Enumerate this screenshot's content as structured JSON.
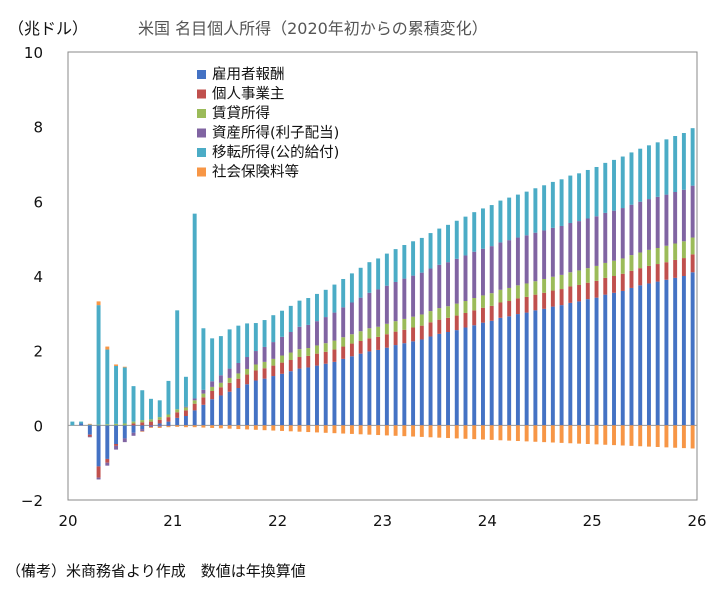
{
  "chart_data": {
    "type": "bar",
    "stacked": true,
    "title": "米国 名目個人所得（2020年初からの累積変化）",
    "unit_label": "（兆ドル）",
    "note": "（備考）米商務省より作成　数値は年換算値",
    "ylim": [
      -2,
      10
    ],
    "yticks": [
      "−2",
      "0",
      "2",
      "4",
      "6",
      "8",
      "10"
    ],
    "ytick_values": [
      -2,
      0,
      2,
      4,
      6,
      8,
      10
    ],
    "xlim": [
      20,
      26
    ],
    "xticks": [
      "20",
      "21",
      "22",
      "23",
      "24",
      "25",
      "26"
    ],
    "xtick_values": [
      20,
      21,
      22,
      23,
      24,
      25,
      26
    ],
    "grid": false,
    "legend_position": "top-left",
    "series": [
      {
        "name": "雇用者報酬",
        "color": "#4472c4"
      },
      {
        "name": "個人事業主",
        "color": "#c0504d"
      },
      {
        "name": "賃貸所得",
        "color": "#9bbb59"
      },
      {
        "name": "資産所得(利子配当)",
        "color": "#8064a2"
      },
      {
        "name": "移転所得(公的給付)",
        "color": "#4bacc6"
      },
      {
        "name": "社会保険料等",
        "color": "#f79646"
      }
    ],
    "months": [
      "2020-01",
      "2020-02",
      "2020-03",
      "2020-04",
      "2020-05",
      "2020-06",
      "2020-07",
      "2020-08",
      "2020-09",
      "2020-10",
      "2020-11",
      "2020-12",
      "2021-01",
      "2021-02",
      "2021-03",
      "2021-04",
      "2021-05",
      "2021-06",
      "2021-07",
      "2021-08",
      "2021-09",
      "2021-10",
      "2021-11",
      "2021-12",
      "2022-01",
      "2022-02",
      "2022-03",
      "2022-04",
      "2022-05",
      "2022-06",
      "2022-07",
      "2022-08",
      "2022-09",
      "2022-10",
      "2022-11",
      "2022-12",
      "2023-01",
      "2023-02",
      "2023-03",
      "2023-04",
      "2023-05",
      "2023-06",
      "2023-07",
      "2023-08",
      "2023-09",
      "2023-10",
      "2023-11",
      "2023-12",
      "2024-01",
      "2024-02",
      "2024-03",
      "2024-04",
      "2024-05",
      "2024-06",
      "2024-07",
      "2024-08",
      "2024-09",
      "2024-10",
      "2024-11",
      "2024-12",
      "2025-01",
      "2025-02",
      "2025-03",
      "2025-04",
      "2025-05",
      "2025-06",
      "2025-07",
      "2025-08",
      "2025-09",
      "2025-10",
      "2025-11",
      "2025-12"
    ],
    "values": {
      "雇用者報酬": [
        0.0,
        0.05,
        -0.25,
        -1.1,
        -0.9,
        -0.5,
        -0.35,
        -0.2,
        -0.1,
        0.0,
        0.05,
        0.1,
        0.2,
        0.25,
        0.4,
        0.55,
        0.7,
        0.8,
        0.9,
        1.0,
        1.1,
        1.2,
        1.25,
        1.32,
        1.38,
        1.45,
        1.52,
        1.55,
        1.6,
        1.65,
        1.7,
        1.78,
        1.85,
        1.92,
        1.98,
        2.02,
        2.08,
        2.15,
        2.2,
        2.25,
        2.3,
        2.38,
        2.45,
        2.5,
        2.55,
        2.62,
        2.68,
        2.75,
        2.8,
        2.88,
        2.92,
        2.98,
        3.02,
        3.08,
        3.12,
        3.18,
        3.22,
        3.28,
        3.32,
        3.38,
        3.42,
        3.5,
        3.55,
        3.6,
        3.68,
        3.75,
        3.8,
        3.85,
        3.9,
        3.95,
        4.0,
        4.1
      ],
      "個人事業主": [
        0.0,
        0.0,
        -0.05,
        -0.3,
        -0.1,
        -0.05,
        0.0,
        0.05,
        0.08,
        0.1,
        0.1,
        0.12,
        0.15,
        0.15,
        0.18,
        0.2,
        0.22,
        0.22,
        0.24,
        0.25,
        0.26,
        0.27,
        0.28,
        0.28,
        0.3,
        0.3,
        0.31,
        0.31,
        0.32,
        0.32,
        0.33,
        0.33,
        0.34,
        0.34,
        0.35,
        0.35,
        0.36,
        0.36,
        0.36,
        0.37,
        0.37,
        0.38,
        0.38,
        0.38,
        0.39,
        0.39,
        0.4,
        0.4,
        0.4,
        0.41,
        0.41,
        0.42,
        0.42,
        0.42,
        0.43,
        0.43,
        0.43,
        0.44,
        0.44,
        0.44,
        0.45,
        0.45,
        0.45,
        0.46,
        0.46,
        0.46,
        0.47,
        0.47,
        0.47,
        0.48,
        0.48,
        0.48
      ],
      "賃貸所得": [
        0.0,
        0.0,
        0.0,
        0.02,
        0.03,
        0.04,
        0.05,
        0.05,
        0.06,
        0.06,
        0.07,
        0.07,
        0.08,
        0.08,
        0.09,
        0.1,
        0.11,
        0.12,
        0.13,
        0.14,
        0.15,
        0.16,
        0.17,
        0.18,
        0.19,
        0.2,
        0.21,
        0.21,
        0.22,
        0.23,
        0.24,
        0.25,
        0.25,
        0.26,
        0.27,
        0.27,
        0.28,
        0.28,
        0.29,
        0.29,
        0.3,
        0.3,
        0.31,
        0.31,
        0.32,
        0.32,
        0.33,
        0.33,
        0.34,
        0.34,
        0.35,
        0.35,
        0.36,
        0.36,
        0.37,
        0.37,
        0.38,
        0.38,
        0.39,
        0.39,
        0.4,
        0.4,
        0.41,
        0.41,
        0.42,
        0.42,
        0.43,
        0.43,
        0.44,
        0.44,
        0.45,
        0.45
      ],
      "資産所得(利子配当)": [
        0.0,
        0.0,
        -0.02,
        -0.05,
        -0.08,
        -0.1,
        -0.1,
        -0.08,
        -0.06,
        -0.05,
        -0.04,
        -0.02,
        0.0,
        0.02,
        0.05,
        0.1,
        0.15,
        0.2,
        0.25,
        0.28,
        0.32,
        0.36,
        0.4,
        0.45,
        0.5,
        0.55,
        0.6,
        0.62,
        0.65,
        0.7,
        0.75,
        0.8,
        0.85,
        0.9,
        0.95,
        1.0,
        1.02,
        1.05,
        1.08,
        1.1,
        1.12,
        1.14,
        1.16,
        1.18,
        1.2,
        1.22,
        1.24,
        1.25,
        1.26,
        1.27,
        1.28,
        1.28,
        1.29,
        1.3,
        1.3,
        1.31,
        1.31,
        1.32,
        1.32,
        1.33,
        1.33,
        1.34,
        1.34,
        1.35,
        1.35,
        1.36,
        1.36,
        1.37,
        1.37,
        1.38,
        1.38,
        1.39
      ],
      "移転所得(公的給付)": [
        0.1,
        0.05,
        0.02,
        3.2,
        2.0,
        1.55,
        1.5,
        0.95,
        0.8,
        0.55,
        0.45,
        0.9,
        2.65,
        0.8,
        4.95,
        1.65,
        1.15,
        1.05,
        1.05,
        1.0,
        0.9,
        0.75,
        0.72,
        0.72,
        0.7,
        0.7,
        0.7,
        0.72,
        0.73,
        0.73,
        0.75,
        0.76,
        0.78,
        0.8,
        0.82,
        0.83,
        0.86,
        0.88,
        0.9,
        0.92,
        0.93,
        0.95,
        0.97,
        1.0,
        1.02,
        1.04,
        1.06,
        1.08,
        1.1,
        1.12,
        1.14,
        1.15,
        1.17,
        1.19,
        1.21,
        1.23,
        1.25,
        1.27,
        1.28,
        1.3,
        1.32,
        1.34,
        1.36,
        1.38,
        1.4,
        1.42,
        1.44,
        1.46,
        1.48,
        1.5,
        1.52,
        1.54
      ],
      "社会保険料等": [
        0.0,
        0.0,
        0.02,
        0.1,
        0.08,
        0.04,
        0.02,
        0.0,
        -0.01,
        -0.02,
        -0.03,
        -0.03,
        -0.04,
        -0.05,
        -0.05,
        -0.06,
        -0.07,
        -0.08,
        -0.09,
        -0.1,
        -0.11,
        -0.12,
        -0.13,
        -0.14,
        -0.15,
        -0.16,
        -0.17,
        -0.18,
        -0.19,
        -0.2,
        -0.21,
        -0.22,
        -0.23,
        -0.24,
        -0.25,
        -0.26,
        -0.27,
        -0.28,
        -0.29,
        -0.3,
        -0.31,
        -0.32,
        -0.33,
        -0.34,
        -0.35,
        -0.36,
        -0.37,
        -0.38,
        -0.39,
        -0.4,
        -0.41,
        -0.42,
        -0.43,
        -0.44,
        -0.45,
        -0.46,
        -0.47,
        -0.48,
        -0.49,
        -0.5,
        -0.51,
        -0.52,
        -0.53,
        -0.54,
        -0.55,
        -0.56,
        -0.57,
        -0.58,
        -0.59,
        -0.6,
        -0.61,
        -0.62
      ]
    }
  }
}
